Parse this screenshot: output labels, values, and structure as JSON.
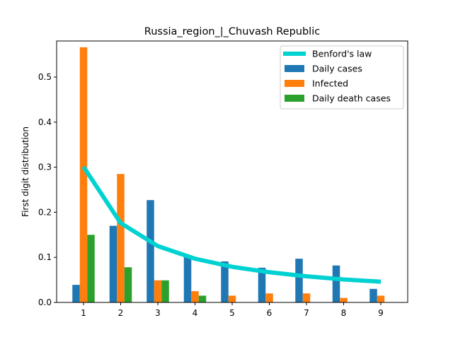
{
  "chart_data": {
    "type": "bar",
    "title": "Russia_region_|_Chuvash Republic",
    "xlabel": "",
    "ylabel": "First digit distribution",
    "categories": [
      "1",
      "2",
      "3",
      "4",
      "5",
      "6",
      "7",
      "8",
      "9"
    ],
    "ylim": [
      0,
      0.58
    ],
    "yticks": [
      "0.0",
      "0.1",
      "0.2",
      "0.3",
      "0.4",
      "0.5"
    ],
    "legend_position": "top-right",
    "series": [
      {
        "name": "Daily cases",
        "type": "bar",
        "color": "#1f77b4",
        "values": [
          0.039,
          0.17,
          0.227,
          0.102,
          0.091,
          0.077,
          0.097,
          0.082,
          0.03
        ]
      },
      {
        "name": "Infected",
        "type": "bar",
        "color": "#ff7f0e",
        "values": [
          0.566,
          0.285,
          0.049,
          0.025,
          0.015,
          0.02,
          0.02,
          0.01,
          0.015
        ]
      },
      {
        "name": "Daily death cases",
        "type": "bar",
        "color": "#2ca02c",
        "values": [
          0.15,
          0.078,
          0.049,
          0.015,
          0,
          0,
          0,
          0,
          0
        ]
      }
    ],
    "benford": {
      "name": "Benford's law",
      "type": "line",
      "color": "#00d2d2",
      "values": [
        0.301,
        0.176,
        0.125,
        0.097,
        0.079,
        0.067,
        0.058,
        0.051,
        0.046
      ]
    }
  }
}
